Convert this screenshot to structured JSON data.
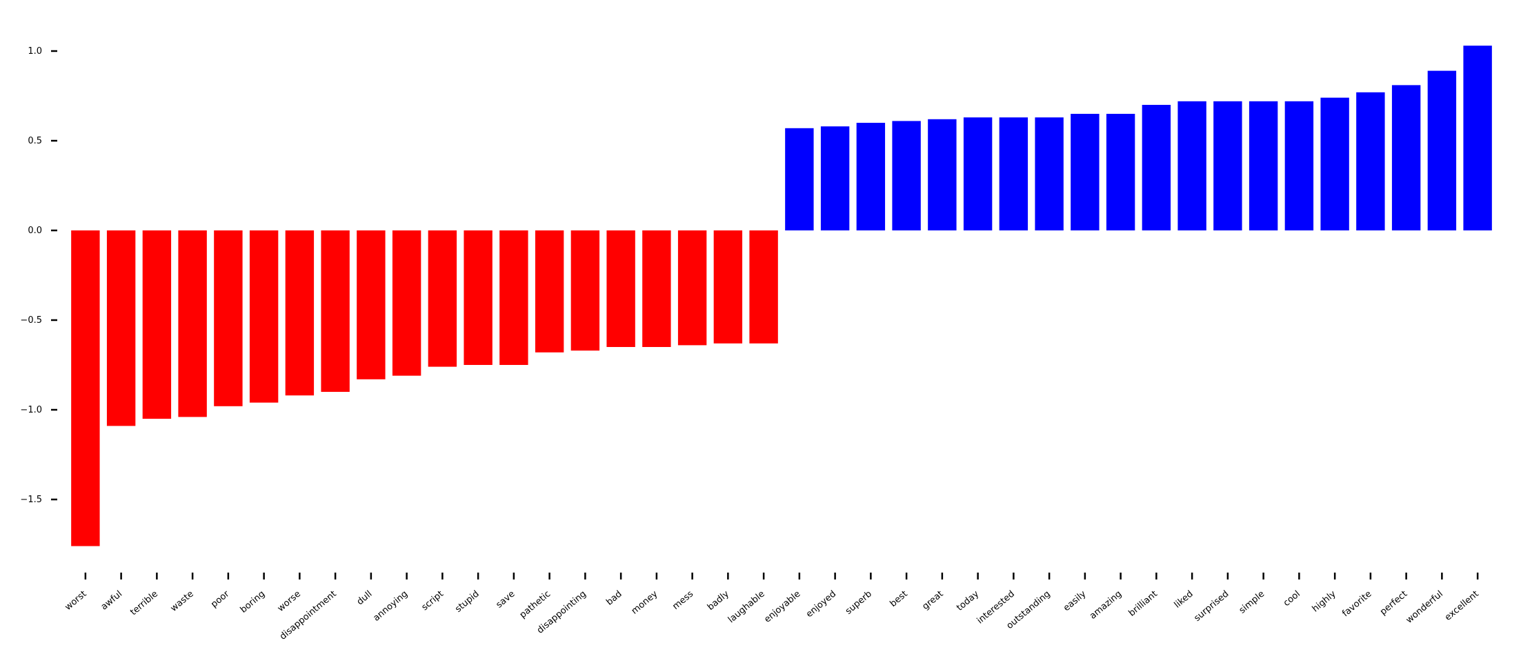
{
  "chart_data": {
    "type": "bar",
    "title": "",
    "xlabel": "",
    "ylabel": "",
    "ylim": [
      -1.85,
      1.13
    ],
    "yticks": [
      1.0,
      0.5,
      0.0,
      -0.5,
      -1.0,
      -1.5
    ],
    "ytick_labels": [
      "1.0",
      "0.5",
      "0.0",
      "−0.5",
      "−1.0",
      "−1.5"
    ],
    "grid": false,
    "legend": "none",
    "colors": {
      "negative": "#ff0000",
      "positive": "#0000ff"
    },
    "categories": [
      "worst",
      "awful",
      "terrible",
      "waste",
      "poor",
      "boring",
      "worse",
      "disappointment",
      "dull",
      "annoying",
      "script",
      "stupid",
      "save",
      "pathetic",
      "disappointing",
      "bad",
      "money",
      "mess",
      "badly",
      "laughable",
      "enjoyable",
      "enjoyed",
      "superb",
      "best",
      "great",
      "today",
      "interested",
      "outstanding",
      "easily",
      "amazing",
      "brilliant",
      "liked",
      "surprised",
      "simple",
      "cool",
      "highly",
      "favorite",
      "perfect",
      "wonderful",
      "excellent"
    ],
    "values": [
      -1.76,
      -1.09,
      -1.05,
      -1.04,
      -0.98,
      -0.96,
      -0.92,
      -0.9,
      -0.83,
      -0.81,
      -0.76,
      -0.75,
      -0.75,
      -0.68,
      -0.67,
      -0.65,
      -0.65,
      -0.64,
      -0.63,
      -0.63,
      0.57,
      0.58,
      0.6,
      0.61,
      0.62,
      0.63,
      0.63,
      0.63,
      0.65,
      0.65,
      0.7,
      0.72,
      0.72,
      0.72,
      0.72,
      0.74,
      0.77,
      0.81,
      0.89,
      1.03
    ]
  }
}
